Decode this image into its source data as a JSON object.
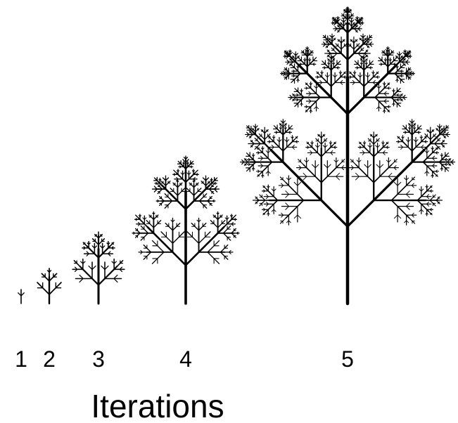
{
  "labels": [
    "1",
    "2",
    "3",
    "4",
    "5"
  ],
  "caption": "Iterations"
}
